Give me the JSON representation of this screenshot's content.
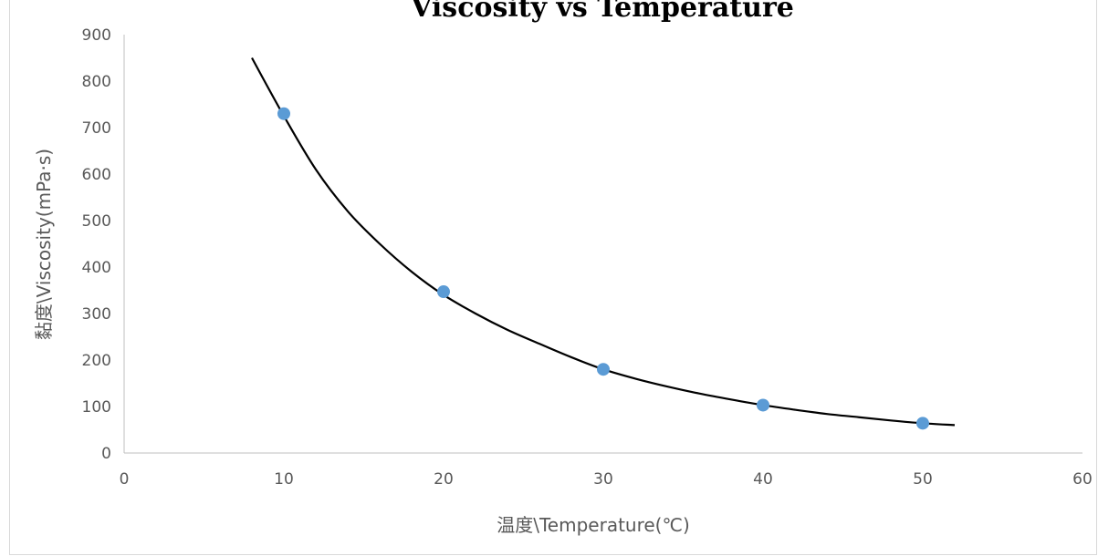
{
  "chart_data": {
    "type": "scatter",
    "title": "Viscosity vs Temperature",
    "xlabel": "温度\\Temperature(℃)",
    "ylabel": "黏度\\Viscosity(mPa·s)",
    "xlim": [
      0,
      60
    ],
    "ylim": [
      0,
      900
    ],
    "x_ticks": [
      "0",
      "10",
      "20",
      "30",
      "40",
      "50",
      "60"
    ],
    "y_ticks": [
      "0",
      "100",
      "200",
      "300",
      "400",
      "500",
      "600",
      "700",
      "800",
      "900"
    ],
    "grid": false,
    "legend": "none",
    "series": [
      {
        "x": [
          10,
          20,
          30,
          40,
          50
        ],
        "y": [
          730,
          347,
          180,
          103,
          64
        ],
        "marker_color": "#5b9bd5"
      }
    ],
    "trendline": {
      "type": "power",
      "x_range": [
        8,
        52
      ],
      "points": [
        [
          8,
          850
        ],
        [
          10,
          725
        ],
        [
          12,
          610
        ],
        [
          14,
          520
        ],
        [
          16,
          450
        ],
        [
          18,
          390
        ],
        [
          20,
          340
        ],
        [
          22,
          300
        ],
        [
          24,
          265
        ],
        [
          26,
          235
        ],
        [
          28,
          206
        ],
        [
          30,
          180
        ],
        [
          32,
          160
        ],
        [
          34,
          143
        ],
        [
          36,
          128
        ],
        [
          38,
          115
        ],
        [
          40,
          103
        ],
        [
          42,
          93
        ],
        [
          44,
          84
        ],
        [
          46,
          77
        ],
        [
          48,
          70
        ],
        [
          50,
          64
        ],
        [
          52,
          60
        ]
      ],
      "color": "#000000"
    }
  }
}
